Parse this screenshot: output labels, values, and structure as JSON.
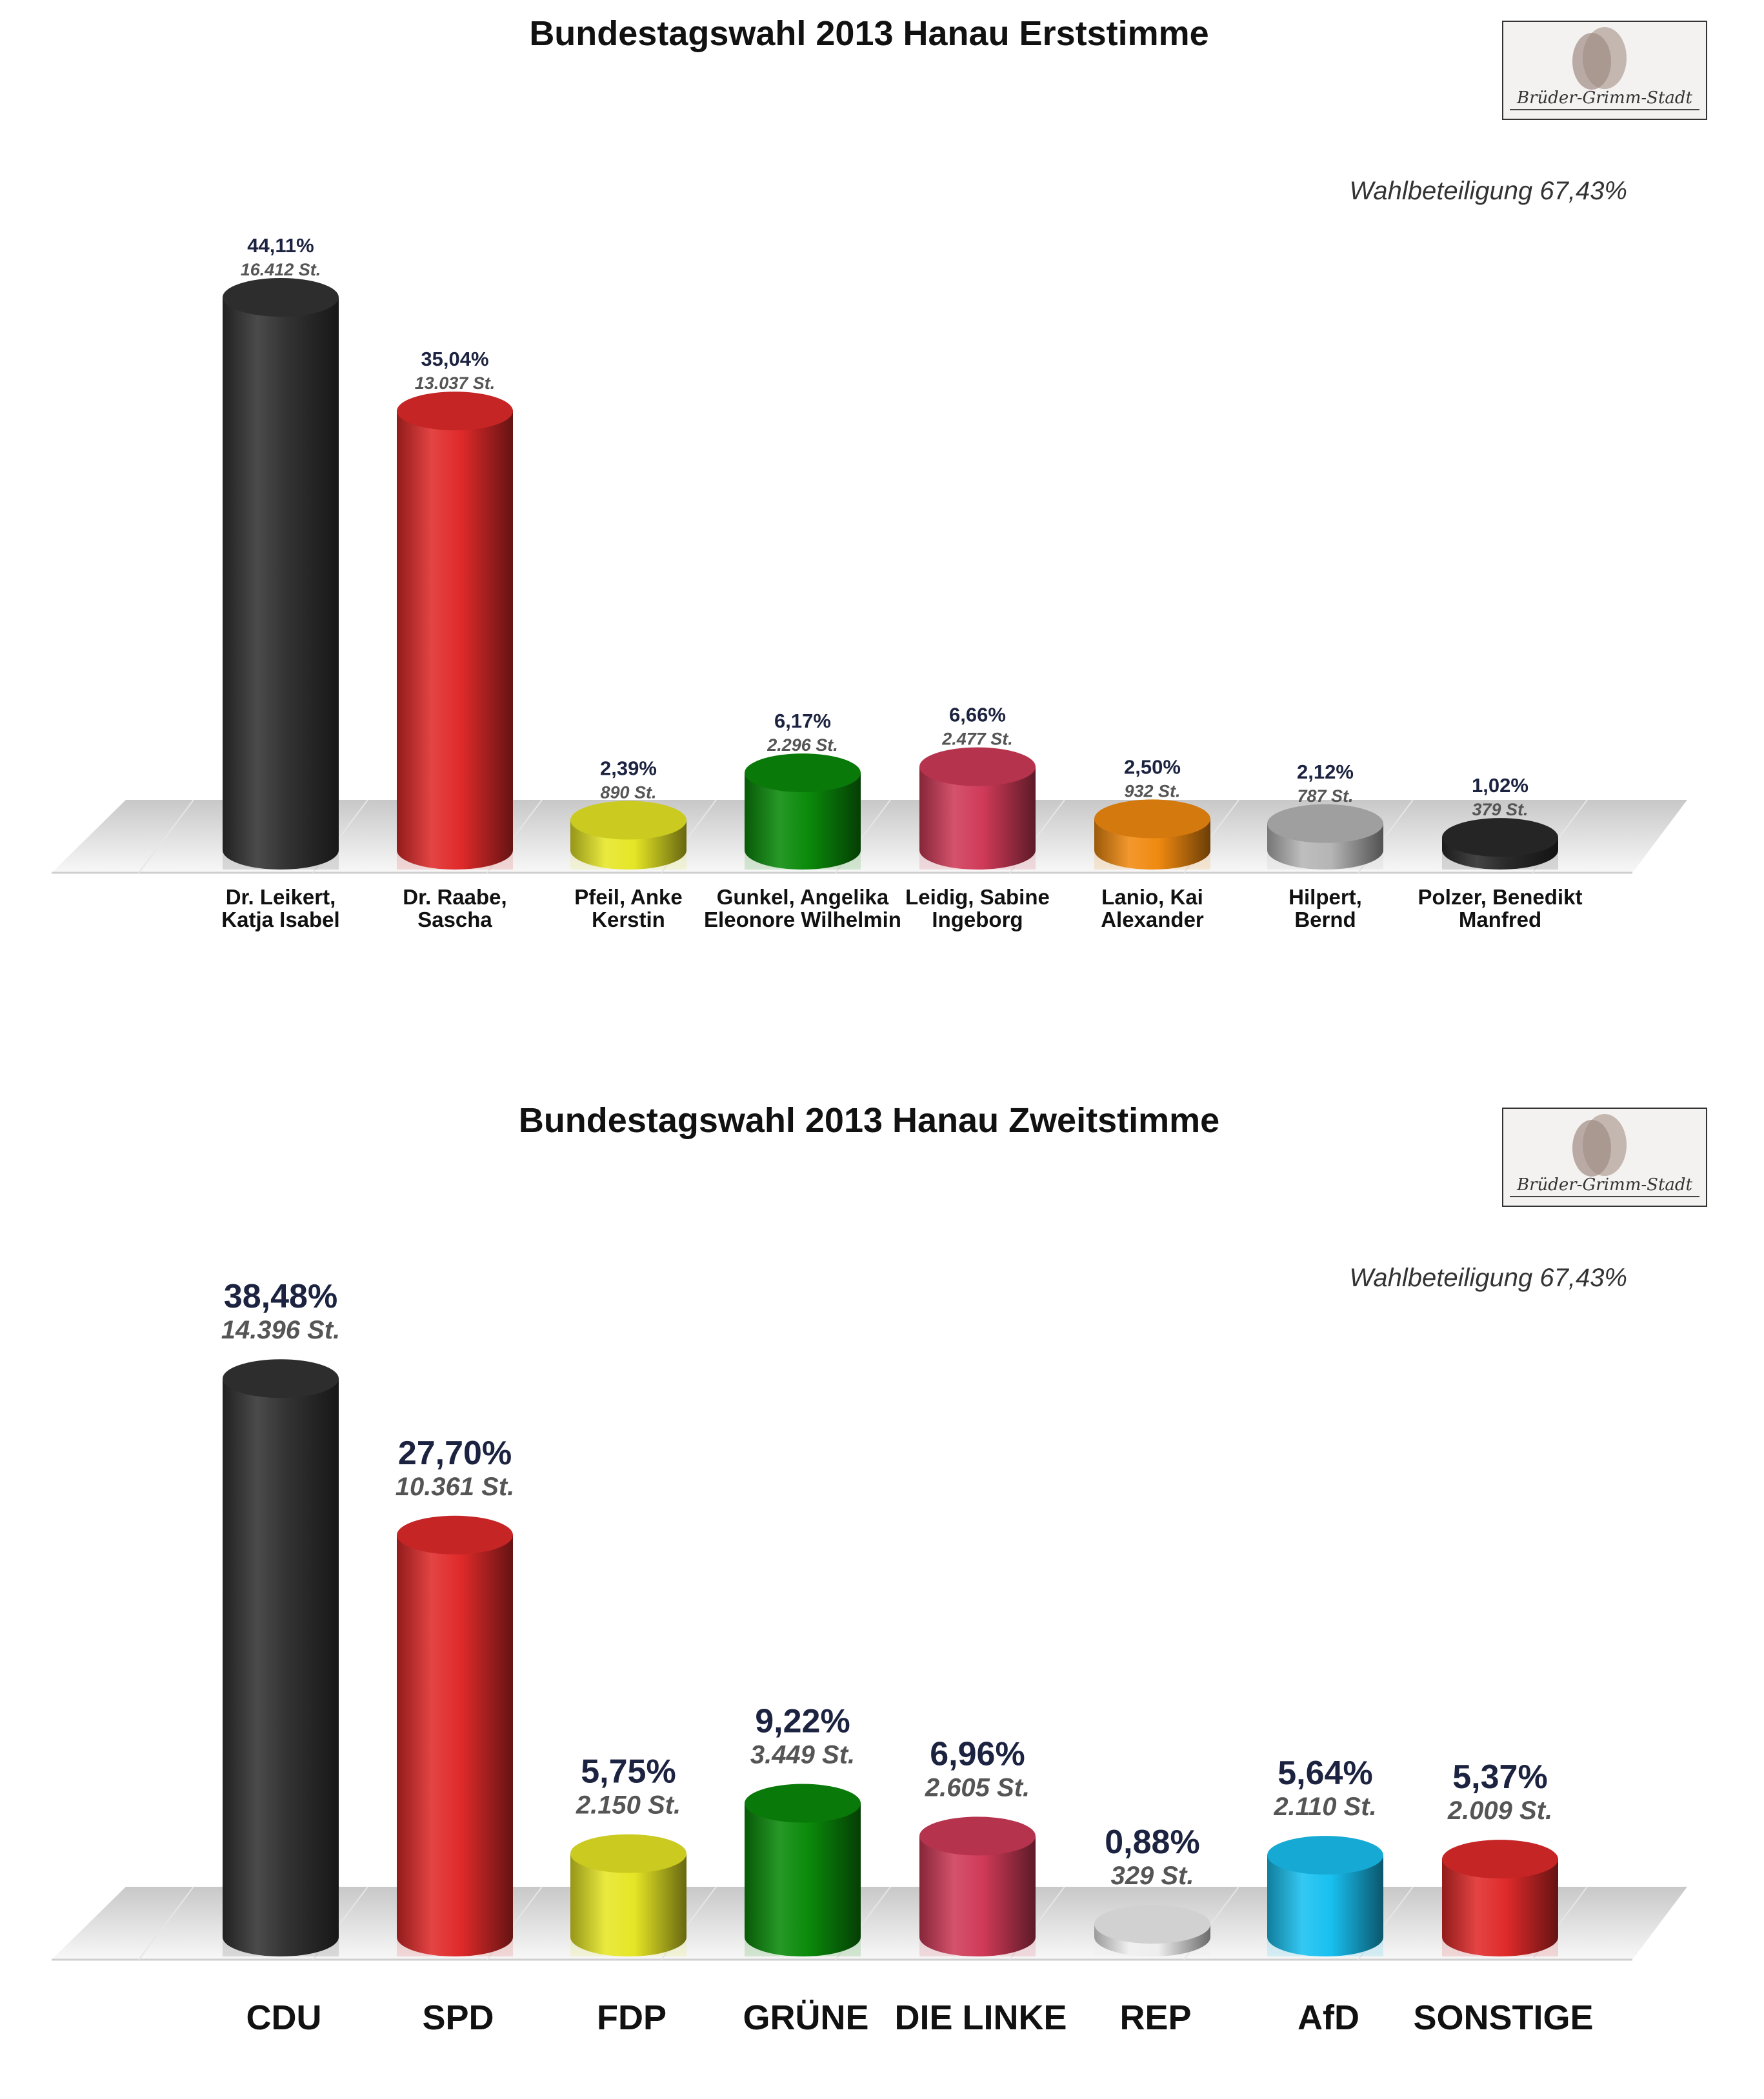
{
  "chart_data": [
    {
      "type": "bar",
      "title": "Bundestagswahl 2013 Hanau Erststimme",
      "turnout": "Wahlbeteiligung 67,43%",
      "logo_text": "Brüder-Grimm-Stadt HANAU",
      "categories": [
        "Dr. Leikert,\nKatja Isabel",
        "Dr. Raabe,\nSascha",
        "Pfeil, Anke\nKerstin",
        "Gunkel, Angelika\nEleonore Wilhelmin",
        "Leidig, Sabine\nIngeborg",
        "Lanio, Kai\nAlexander",
        "Hilpert,\nBernd",
        "Polzer, Benedikt\nManfred"
      ],
      "values": [
        44.11,
        35.04,
        2.39,
        6.17,
        6.66,
        2.5,
        2.12,
        1.02
      ],
      "percent_labels": [
        "44,11%",
        "35,04%",
        "2,39%",
        "6,17%",
        "6,66%",
        "2,50%",
        "2,12%",
        "1,02%"
      ],
      "vote_labels": [
        "16.412 St.",
        "13.037 St.",
        "890 St.",
        "2.296 St.",
        "2.477 St.",
        "932 St.",
        "787 St.",
        "379 St."
      ],
      "colors": [
        "#333333",
        "#e02a2a",
        "#e6e626",
        "#0a8a0a",
        "#cf3a58",
        "#f08a10",
        "#b5b5b5",
        "#2a2a2a"
      ],
      "unit": "%",
      "grid": false
    },
    {
      "type": "bar",
      "title": "Bundestagswahl 2013 Hanau Zweitstimme",
      "turnout": "Wahlbeteiligung 67,43%",
      "logo_text": "Brüder-Grimm-Stadt HANAU",
      "categories": [
        "CDU",
        "SPD",
        "FDP",
        "GRÜNE",
        "DIE LINKE",
        "REP",
        "AfD",
        "SONSTIGE"
      ],
      "values": [
        38.48,
        27.7,
        5.75,
        9.22,
        6.96,
        0.88,
        5.64,
        5.37
      ],
      "percent_labels": [
        "38,48%",
        "27,70%",
        "5,75%",
        "9,22%",
        "6,96%",
        "0,88%",
        "5,64%",
        "5,37%"
      ],
      "vote_labels": [
        "14.396 St.",
        "10.361 St.",
        "2.150 St.",
        "3.449 St.",
        "2.605 St.",
        "329 St.",
        "2.110 St.",
        "2.009 St."
      ],
      "colors": [
        "#333333",
        "#e02a2a",
        "#e6e626",
        "#0a8a0a",
        "#cf3a58",
        "#eeeeee",
        "#18c0f0",
        "#e02a2a"
      ],
      "unit": "%",
      "grid": false
    }
  ]
}
